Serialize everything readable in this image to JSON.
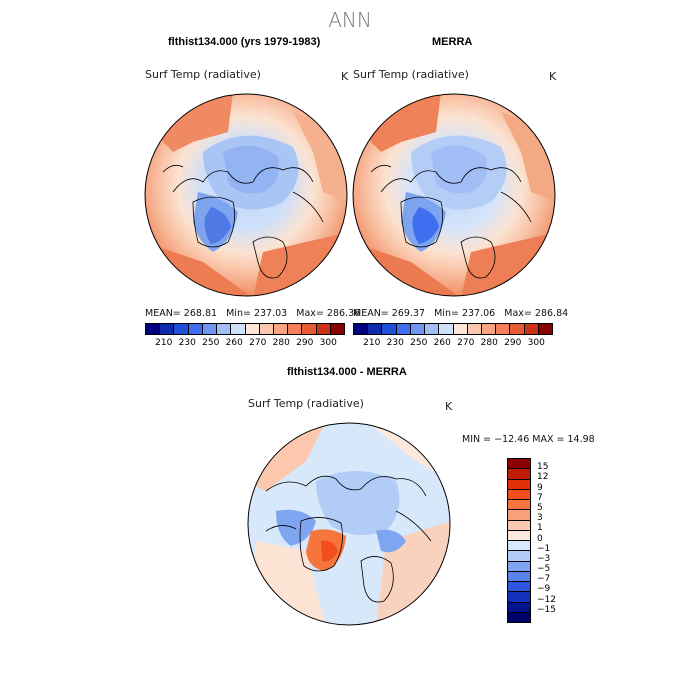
{
  "title": "ANN",
  "panels": [
    {
      "subtitle": "flthist134.000 (yrs 1979-1983)",
      "variable": "Surf Temp (radiative)",
      "unit": "K",
      "mean_label": "MEAN=",
      "mean": "268.81",
      "min_label": "Min=",
      "min": "237.03",
      "max_label": "Max=",
      "max": "286.36"
    },
    {
      "subtitle": "MERRA",
      "variable": "Surf Temp (radiative)",
      "unit": "K",
      "mean_label": "MEAN=",
      "mean": "269.37",
      "min_label": "Min=",
      "min": "237.06",
      "max_label": "Max=",
      "max": "286.84"
    }
  ],
  "abs_colorbar": {
    "ticks": [
      "210",
      "230",
      "250",
      "260",
      "270",
      "280",
      "290",
      "300"
    ],
    "colors": [
      "#00007f",
      "#0f2aa8",
      "#1f4fd8",
      "#3f6ff0",
      "#6f95f2",
      "#a0bef5",
      "#cfe0fa",
      "#fbe6d8",
      "#f9c8ae",
      "#f7a582",
      "#f3805a",
      "#e85a33",
      "#cc3316",
      "#8b0000"
    ]
  },
  "diff_panel": {
    "subtitle": "flthist134.000 - MERRA",
    "variable": "Surf Temp (radiative)",
    "unit": "K",
    "minmax": "MIN = −12.46  MAX =   14.98"
  },
  "diff_colorbar": {
    "labels": [
      "15",
      "12",
      "9",
      "7",
      "5",
      "3",
      "1",
      "0",
      "−1",
      "−3",
      "−5",
      "−7",
      "−9",
      "−12",
      "−15"
    ],
    "colors": [
      "#8b0000",
      "#c01d06",
      "#e0300a",
      "#f04e1a",
      "#f5753d",
      "#f8a07a",
      "#fbc8ae",
      "#fde8dc",
      "#d8e8fb",
      "#b0ccf7",
      "#7fa5f1",
      "#5a82ec",
      "#2f55df",
      "#1330b8",
      "#06138e",
      "#00006a"
    ]
  }
}
